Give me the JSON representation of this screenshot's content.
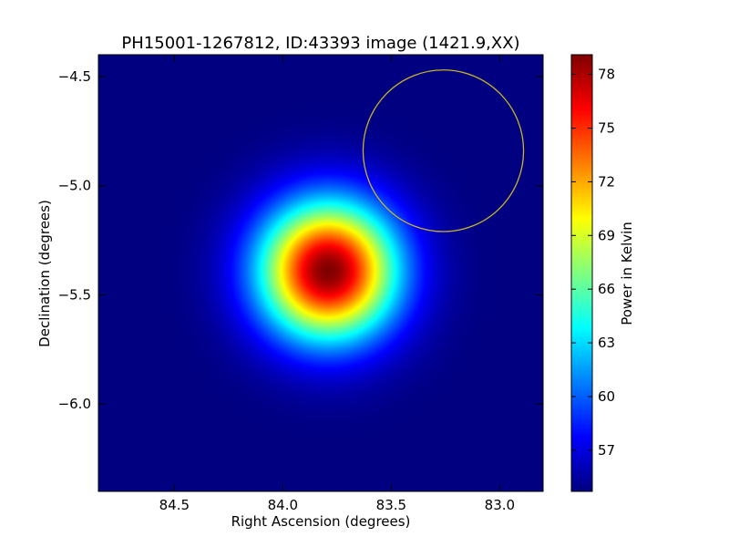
{
  "chart_data": {
    "type": "heatmap",
    "title": "PH15001-1267812, ID:43393 image (1421.9,XX)",
    "xlabel": "Right Ascension (degrees)",
    "ylabel": "Declination (degrees)",
    "xlim": [
      84.85,
      82.8
    ],
    "ylim": [
      -6.4,
      -4.4
    ],
    "xticks": [
      84.5,
      84.0,
      83.5,
      83.0
    ],
    "xtick_labels": [
      "84.5",
      "84.0",
      "83.5",
      "83.0"
    ],
    "yticks": [
      -4.5,
      -5.0,
      -5.5,
      -6.0
    ],
    "ytick_labels": [
      "−4.5",
      "−5.0",
      "−5.5",
      "−6.0"
    ],
    "colorbar": {
      "label": "Power in Kelvin",
      "range": [
        54.7,
        79.1
      ],
      "ticks": [
        57,
        60,
        63,
        66,
        69,
        72,
        75,
        78
      ],
      "tick_labels": [
        "57",
        "60",
        "63",
        "66",
        "69",
        "72",
        "75",
        "78"
      ],
      "colormap": "jet"
    },
    "source": {
      "ra": 83.79,
      "dec": -5.39,
      "peak_kelvin": 79.1,
      "baseline_kelvin": 54.7,
      "fwhm_deg": 0.52
    },
    "circle": {
      "ra": 83.26,
      "dec": -4.84,
      "radius_deg": 0.37,
      "color": "#c8b428"
    }
  }
}
